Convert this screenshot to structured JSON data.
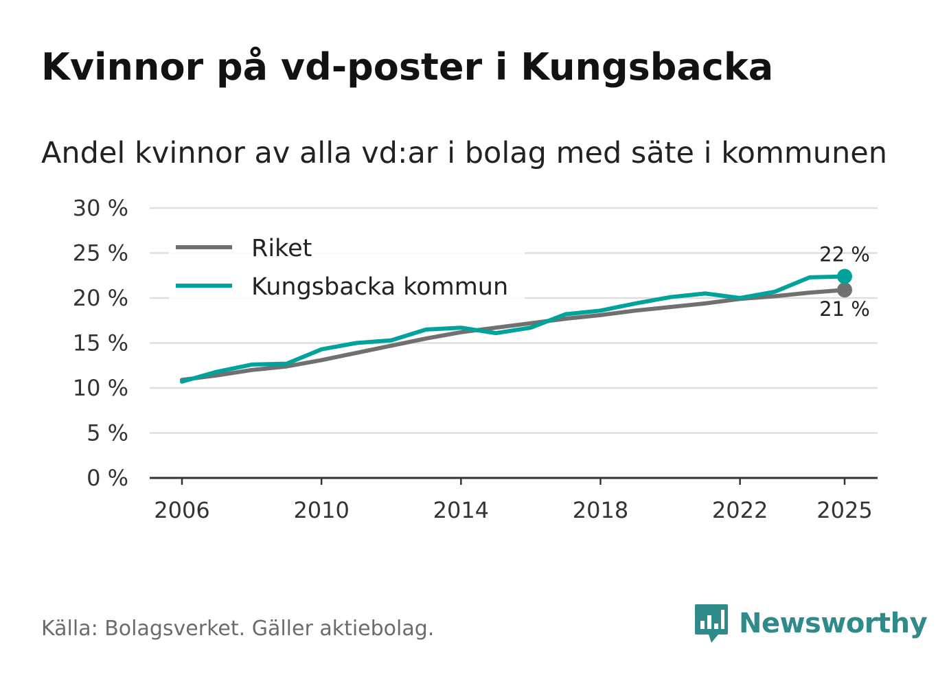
{
  "header": {
    "title": "Kvinnor på vd-poster i Kungsbacka",
    "subtitle": "Andel kvinnor av alla vd:ar i bolag med säte i kommunen"
  },
  "footer": {
    "source": "Källa: Bolagsverket. Gäller aktiebolag.",
    "brand": "Newsworthy",
    "brand_icon": "newsworthy-logo-icon",
    "brand_color": "#2f8a8a"
  },
  "chart_data": {
    "type": "line",
    "title": "Kvinnor på vd-poster i Kungsbacka",
    "subtitle": "Andel kvinnor av alla vd:ar i bolag med säte i kommunen",
    "xlabel": "",
    "ylabel": "",
    "x": [
      2006,
      2007,
      2008,
      2009,
      2010,
      2011,
      2012,
      2013,
      2014,
      2015,
      2016,
      2017,
      2018,
      2019,
      2020,
      2021,
      2022,
      2023,
      2024,
      2025
    ],
    "x_ticks": [
      2006,
      2010,
      2014,
      2018,
      2022,
      2025
    ],
    "x_tick_labels": [
      "2006",
      "2010",
      "2014",
      "2018",
      "2022",
      "2025"
    ],
    "ylim": [
      0,
      30
    ],
    "y_ticks": [
      0,
      5,
      10,
      15,
      20,
      25,
      30
    ],
    "y_tick_labels": [
      "0 %",
      "5 %",
      "10 %",
      "15 %",
      "20 %",
      "25 %",
      "30 %"
    ],
    "grid": true,
    "legend_position": "top-left",
    "series": [
      {
        "name": "Riket",
        "color": "#707070",
        "values": [
          10.9,
          11.4,
          12.0,
          12.4,
          13.1,
          13.9,
          14.7,
          15.5,
          16.2,
          16.7,
          17.2,
          17.7,
          18.1,
          18.6,
          19.0,
          19.4,
          19.9,
          20.2,
          20.6,
          20.9
        ],
        "end_label": "21 %"
      },
      {
        "name": "Kungsbacka kommun",
        "color": "#00a39b",
        "values": [
          10.7,
          11.8,
          12.6,
          12.7,
          14.3,
          15.0,
          15.3,
          16.5,
          16.7,
          16.1,
          16.7,
          18.2,
          18.6,
          19.4,
          20.1,
          20.5,
          20.0,
          20.7,
          22.3,
          22.4
        ],
        "end_label": "22 %"
      }
    ]
  }
}
